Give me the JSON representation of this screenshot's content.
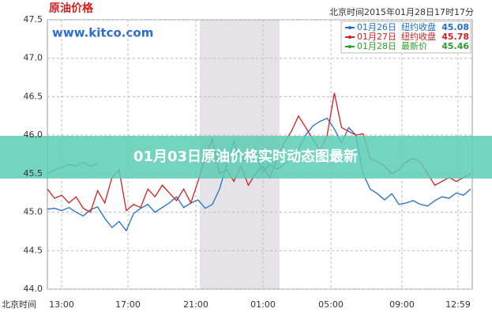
{
  "chart_data": {
    "type": "line",
    "title": "原油价格",
    "watermark": "www.kitco.com",
    "timestamp": "北京时间2015年01月28日17时17分",
    "x_axis_label": "北京时间",
    "banner": "01月03日原油价格实时动态图最新",
    "x_tick_labels": [
      "13:00",
      "17:00",
      "21:00",
      "01:00",
      "05:00",
      "09:00",
      "12:59"
    ],
    "ylim": [
      44.0,
      47.5
    ],
    "yticks": [
      {
        "value": 44.0,
        "label": "44.0"
      },
      44.5,
      {
        "value": 45.0,
        "label": "45.0"
      },
      45.5,
      {
        "value": 46.0,
        "label": "46.0"
      },
      46.5,
      {
        "value": 47.0,
        "label": "47.0"
      },
      47.5
    ],
    "grid": true,
    "series": [
      {
        "name": "01月26日",
        "legend_label": "纽约收盘",
        "legend_value": 45.08,
        "color": "#1f6fd0",
        "values": [
          45.04,
          45.05,
          45.02,
          45.06,
          45.0,
          44.95,
          45.03,
          45.07,
          44.92,
          44.8,
          44.88,
          44.76,
          44.98,
          45.05,
          45.1,
          45.0,
          45.06,
          45.12,
          45.2,
          45.06,
          45.12,
          45.16,
          45.05,
          45.1,
          45.3,
          45.62,
          45.92,
          45.65,
          45.72,
          45.76,
          45.52,
          45.62,
          45.56,
          45.62,
          45.7,
          45.82,
          46.0,
          46.12,
          46.18,
          46.22,
          46.08,
          45.9,
          46.1,
          46.0,
          45.5,
          45.3,
          45.24,
          45.16,
          45.24,
          45.1,
          45.12,
          45.15,
          45.1,
          45.08,
          45.15,
          45.2,
          45.18,
          45.25,
          45.22,
          45.3
        ]
      },
      {
        "name": "01月27日",
        "legend_label": "纽约收盘",
        "legend_value": 45.78,
        "color": "#d42020",
        "values": [
          45.3,
          45.18,
          45.22,
          45.12,
          45.2,
          45.05,
          45.0,
          45.28,
          45.12,
          45.45,
          45.55,
          45.02,
          45.1,
          45.06,
          45.3,
          45.2,
          45.35,
          45.25,
          45.15,
          45.3,
          45.12,
          45.4,
          45.72,
          45.95,
          45.5,
          45.55,
          45.4,
          45.6,
          45.35,
          45.5,
          45.6,
          45.45,
          45.7,
          45.9,
          46.05,
          46.25,
          46.1,
          45.95,
          45.8,
          46.0,
          46.55,
          46.1,
          46.05,
          46.0,
          46.02,
          45.7,
          45.65,
          45.6,
          45.5,
          45.55,
          45.65,
          45.7,
          45.65,
          45.5,
          45.35,
          45.4,
          45.45,
          45.4,
          45.45,
          45.5
        ]
      },
      {
        "name": "01月28日",
        "legend_label": "最新价",
        "legend_value": 45.46,
        "color": "#2ca02c",
        "values": [
          45.5,
          45.55,
          45.58,
          45.62,
          45.6,
          45.65,
          45.6,
          45.63,
          null,
          null,
          null,
          null,
          null,
          null,
          null,
          null,
          null,
          null,
          null,
          null,
          null,
          null,
          null,
          null,
          null,
          null,
          null,
          null,
          null,
          null,
          null,
          null,
          null,
          null,
          null,
          null,
          null,
          null,
          null,
          null,
          null,
          null,
          null,
          null,
          null,
          null,
          null,
          null,
          null,
          null,
          null,
          null,
          null,
          null,
          null,
          null,
          null,
          null,
          null,
          null
        ]
      }
    ]
  }
}
